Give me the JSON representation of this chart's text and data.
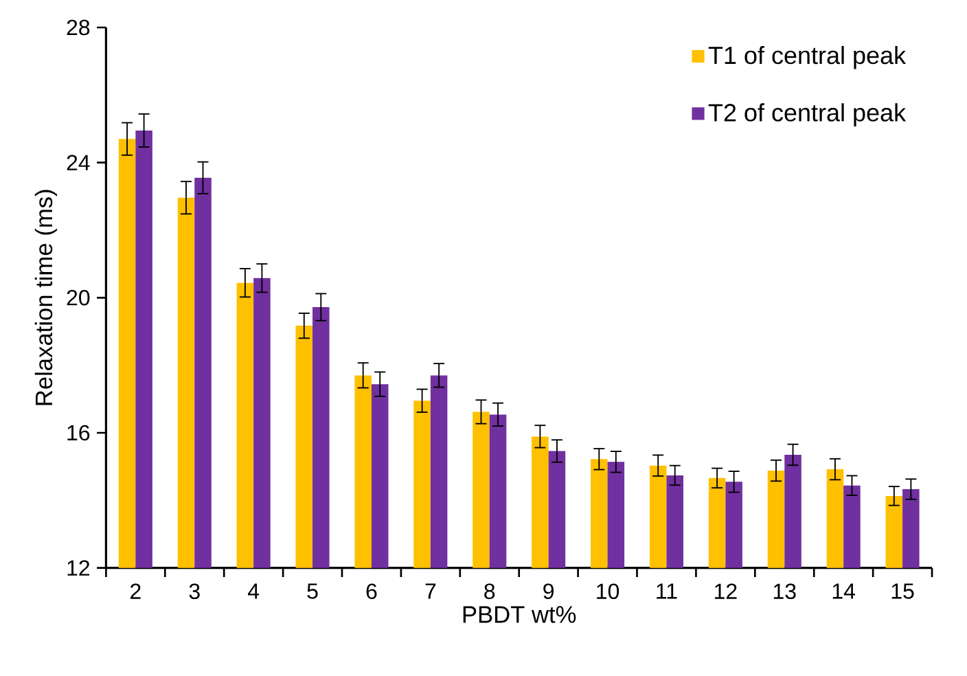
{
  "chart_data": {
    "type": "bar",
    "xlabel": "PBDT wt%",
    "ylabel": "Relaxation time (ms)",
    "categories": [
      "2",
      "3",
      "4",
      "5",
      "6",
      "7",
      "8",
      "9",
      "10",
      "11",
      "12",
      "13",
      "14",
      "15"
    ],
    "series": [
      {
        "name": "T1 of central peak",
        "color": "#ffc000",
        "values": [
          24.7,
          22.96,
          20.44,
          19.17,
          17.7,
          16.95,
          16.62,
          15.89,
          15.22,
          15.03,
          14.66,
          14.88,
          14.92,
          14.13
        ],
        "errors": [
          0.48,
          0.48,
          0.42,
          0.37,
          0.37,
          0.34,
          0.35,
          0.33,
          0.31,
          0.31,
          0.29,
          0.31,
          0.31,
          0.28
        ]
      },
      {
        "name": "T2 of central peak",
        "color": "#7030a0",
        "values": [
          24.95,
          23.55,
          20.58,
          19.72,
          17.44,
          17.7,
          16.54,
          15.46,
          15.14,
          14.74,
          14.55,
          15.35,
          14.44,
          14.33
        ],
        "errors": [
          0.49,
          0.47,
          0.42,
          0.4,
          0.36,
          0.35,
          0.34,
          0.33,
          0.31,
          0.29,
          0.31,
          0.31,
          0.29,
          0.3
        ]
      }
    ],
    "ylim": [
      12,
      28
    ],
    "yticks": [
      12,
      16,
      20,
      24,
      28
    ],
    "grid": false,
    "legend": "top right"
  }
}
